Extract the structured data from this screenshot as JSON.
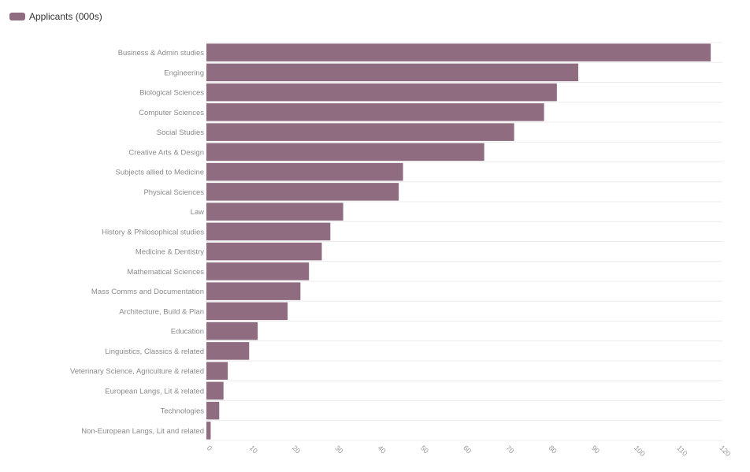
{
  "chart_data": {
    "type": "bar",
    "orientation": "horizontal",
    "categories": [
      "Business & Admin studies",
      "Engineering",
      "Biological Sciences",
      "Computer Sciences",
      "Social Studies",
      "Creative Arts & Design",
      "Subjects allied to Medicine",
      "Physical Sciences",
      "Law",
      "History & Philosophical studies",
      "Medicine & Dentistry",
      "Mathematical Sciences",
      "Mass Comms and Documentation",
      "Architecture, Build & Plan",
      "Education",
      "Linguistics, Classics & related",
      "Veterinary Science, Agriculture & related",
      "European Langs, Lit & related",
      "Technologies",
      "Non-European Langs, Lit and related"
    ],
    "series": [
      {
        "name": "Applicants (000s)",
        "color": "#8f6c80",
        "values": [
          118,
          87,
          82,
          79,
          72,
          65,
          46,
          45,
          32,
          29,
          27,
          24,
          22,
          19,
          12,
          10,
          5,
          4,
          3,
          1
        ]
      }
    ],
    "xlim": [
      0,
      120
    ],
    "x_ticks": [
      "0",
      "10",
      "20",
      "30",
      "40",
      "50",
      "60",
      "70",
      "80",
      "90",
      "100",
      "110",
      "120"
    ],
    "grid": true,
    "legend_position": "top-left"
  }
}
